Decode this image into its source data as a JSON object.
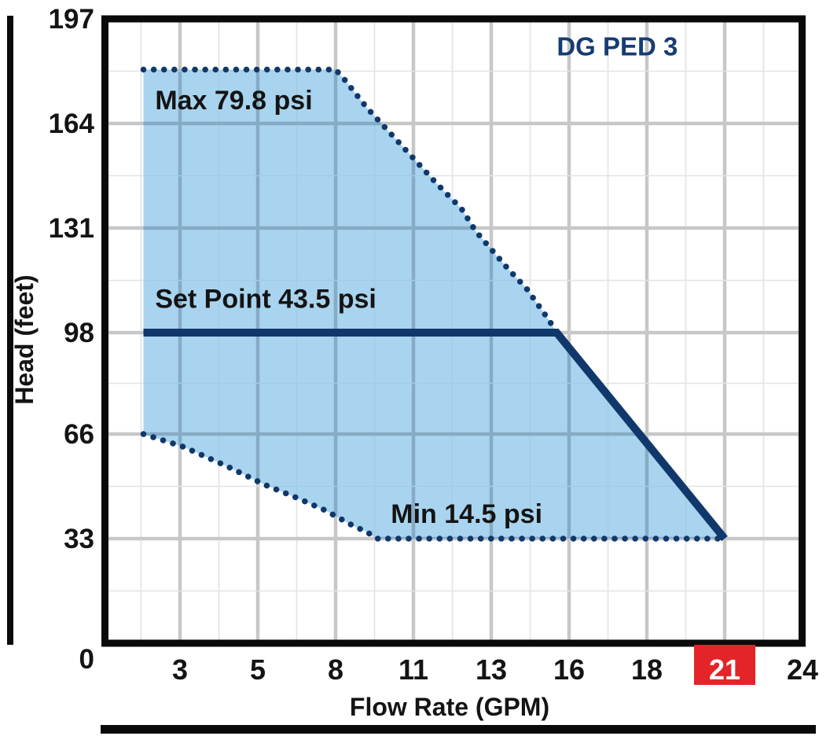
{
  "page": {
    "background": "#FFFFFF"
  },
  "chart_data": {
    "type": "area",
    "title": "DG PED 3",
    "xlabel": "Flow Rate (GPM)",
    "ylabel": "Head (feet)",
    "x_axis": {
      "unit": "GPM",
      "tick_labels": [
        "3",
        "5",
        "8",
        "11",
        "13",
        "16",
        "18",
        "21",
        "24"
      ],
      "highlighted_tick": "21",
      "spacing": "even (ticks 1..9 of 9, right border = 24)",
      "grid": "major at each labeled tick, minor halfway between"
    },
    "y_axis": {
      "unit": "feet",
      "tick_labels": [
        "0",
        "33",
        "66",
        "98",
        "131",
        "164",
        "197"
      ],
      "tick_values_feet": [
        0,
        33,
        66,
        98,
        131,
        164,
        197
      ],
      "range_feet": [
        0,
        197
      ],
      "grid": "major at each labeled tick, minor halfway between"
    },
    "series": [
      {
        "name": "max_boundary",
        "label": "Max 79.8 psi",
        "style": "dotted",
        "points_t_feet": [
          [
            0.53,
            181
          ],
          [
            3.0,
            181
          ],
          [
            3.11,
            178
          ],
          [
            3.4,
            169
          ],
          [
            3.7,
            161
          ],
          [
            4.0,
            153
          ],
          [
            4.3,
            145
          ],
          [
            4.62,
            137
          ],
          [
            4.8,
            130
          ],
          [
            5.22,
            118
          ],
          [
            5.45,
            112
          ],
          [
            5.74,
            102
          ],
          [
            5.84,
            98
          ]
        ]
      },
      {
        "name": "set_point",
        "label": "Set Point 43.5 psi",
        "style": "solid",
        "points_t_feet": [
          [
            0.53,
            98
          ],
          [
            5.84,
            98
          ],
          [
            8,
            33
          ]
        ]
      },
      {
        "name": "min_boundary",
        "label": "Min 14.5 psi",
        "style": "dotted",
        "points_t_feet": [
          [
            0.53,
            66
          ],
          [
            1.04,
            62
          ],
          [
            1.59,
            56
          ],
          [
            2.09,
            50
          ],
          [
            2.49,
            46
          ],
          [
            2.86,
            42
          ],
          [
            3.23,
            37
          ],
          [
            3.41,
            35
          ],
          [
            3.52,
            33
          ],
          [
            8,
            33
          ]
        ]
      }
    ],
    "envelope": {
      "description": "shaded operating region between max and min boundaries, left edge at t=0.53, right edge along set-point diagonal to (t=8, 33ft)"
    },
    "annotations": [
      {
        "text": "Max 79.8 psi",
        "t": 0.68,
        "feet": 168.5,
        "anchor": "start",
        "role": "max-label"
      },
      {
        "text": "Set Point 43.5 psi",
        "t": 0.68,
        "feet": 105.8,
        "anchor": "start",
        "role": "setpoint-label"
      },
      {
        "text": "Min 14.5 psi",
        "t": 3.71,
        "feet": 38.0,
        "anchor": "start",
        "role": "min-label"
      }
    ],
    "title_pos": {
      "t": 6.62,
      "feet": 185.5
    },
    "colors": {
      "navy_line": "#10386B",
      "title_navy": "#173C74",
      "fill_blue": "#A9D4EF",
      "grid_major": "#C7C7C7",
      "grid_minor": "#E3E3E3",
      "grid_in_fill_major": "#86ABC4",
      "grid_in_fill_minor": "#A5CBE2",
      "highlight_red": "#E32428",
      "highlight_text": "#FFFFFF",
      "text_black": "#141414",
      "border_black": "#0A0A0A"
    },
    "legend": "none"
  }
}
